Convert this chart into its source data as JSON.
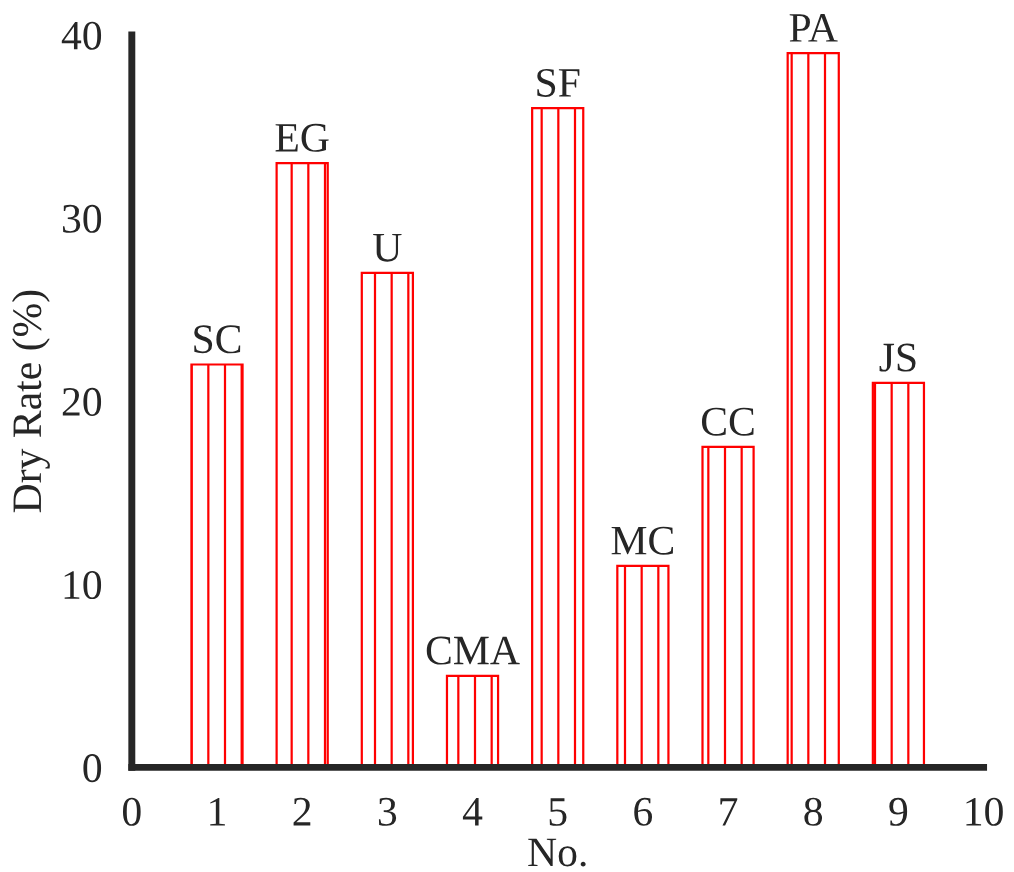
{
  "chart_data": {
    "type": "bar",
    "xlabel": "No.",
    "ylabel": "Dry Rate (%)",
    "x": [
      1,
      2,
      3,
      4,
      5,
      6,
      7,
      8,
      9
    ],
    "values": [
      22,
      33,
      27,
      5,
      36,
      11,
      17.5,
      39,
      21
    ],
    "color": "#ff0000",
    "xlim": [
      0,
      10
    ],
    "xticks": [
      0,
      1,
      2,
      3,
      4,
      5,
      6,
      7,
      8,
      9,
      10
    ],
    "ylim": [
      0,
      40
    ],
    "yticks": [
      0,
      10,
      20,
      30,
      40
    ],
    "grid": false,
    "legend": false,
    "annotations": [
      {
        "text": "SC",
        "x": 1,
        "y": 22
      },
      {
        "text": "EG",
        "x": 2,
        "y": 33
      },
      {
        "text": "U",
        "x": 3,
        "y": 27
      },
      {
        "text": "CMA",
        "x": 4,
        "y": 5
      },
      {
        "text": "SF",
        "x": 5,
        "y": 36
      },
      {
        "text": "MC",
        "x": 6,
        "y": 11
      },
      {
        "text": "CC",
        "x": 7,
        "y": 17.5
      },
      {
        "text": "PA",
        "x": 8,
        "y": 39
      },
      {
        "text": "JS",
        "x": 9,
        "y": 21
      }
    ]
  }
}
